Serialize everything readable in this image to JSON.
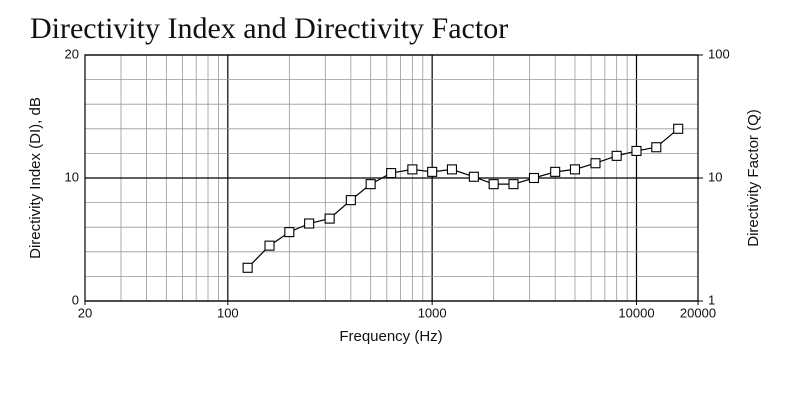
{
  "chart_data": {
    "type": "line",
    "title": "Directivity Index and Directivity Factor",
    "x_label": "Frequency (Hz)",
    "y_label": "Directivity Index (DI), dB",
    "y2_label": "Directivity Factor (Q)",
    "x_log": true,
    "y2_log": true,
    "grid": true,
    "y_grid_step": 2,
    "xlim": [
      20,
      20000
    ],
    "xticks": [
      20,
      100,
      1000,
      10000,
      20000
    ],
    "ylim": [
      0,
      20
    ],
    "yticks": [
      0,
      10,
      20
    ],
    "y2lim": [
      1,
      100
    ],
    "y2ticks": [
      1,
      10,
      100
    ],
    "x": [
      125,
      160,
      200,
      250,
      315,
      400,
      500,
      630,
      800,
      1000,
      1250,
      1600,
      2000,
      2500,
      3150,
      4000,
      5000,
      6300,
      8000,
      10000,
      12500,
      16000
    ],
    "values": [
      2.7,
      4.5,
      5.6,
      6.3,
      6.7,
      8.2,
      9.5,
      10.4,
      10.7,
      10.5,
      10.7,
      10.1,
      9.5,
      9.5,
      10.0,
      10.5,
      10.7,
      11.2,
      11.8,
      12.2,
      12.5,
      14.0
    ],
    "color": "#000000"
  }
}
